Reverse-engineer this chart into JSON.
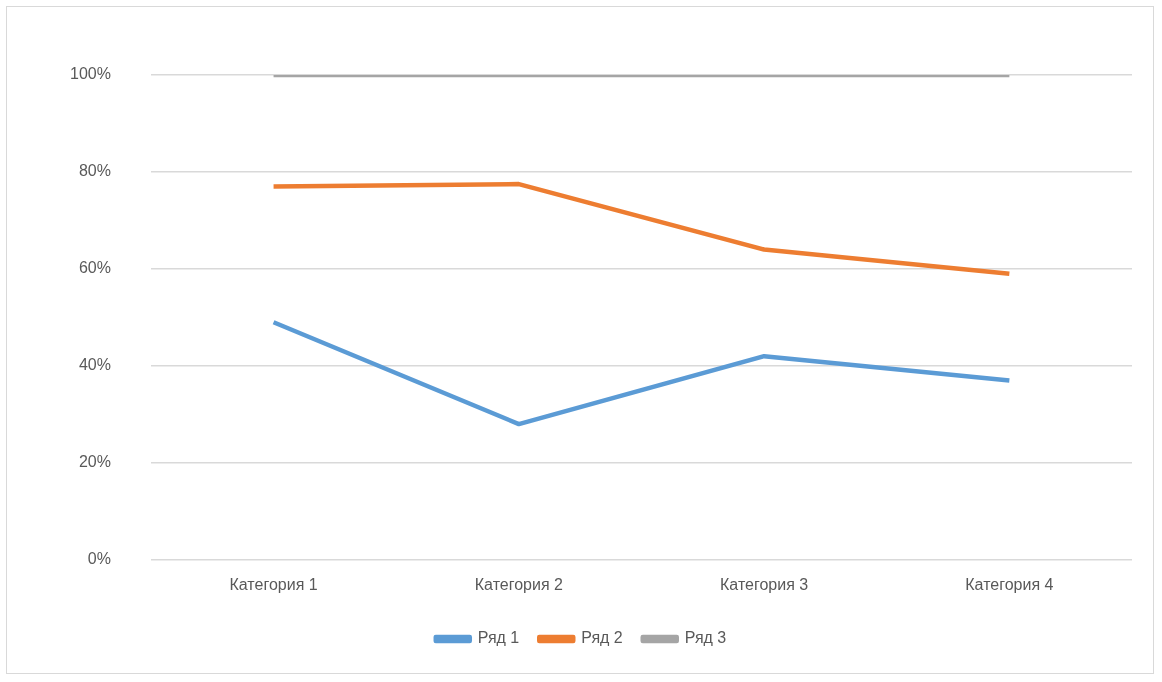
{
  "chart_data": {
    "type": "line",
    "categories": [
      "Категория 1",
      "Категория 2",
      "Категория 3",
      "Категория 4"
    ],
    "series": [
      {
        "name": "Ряд 1",
        "color": "#5b9bd5",
        "values": [
          49,
          28,
          42,
          37
        ]
      },
      {
        "name": "Ряд 2",
        "color": "#ed7d31",
        "values": [
          77,
          77.5,
          64,
          59
        ]
      },
      {
        "name": "Ряд 3",
        "color": "#a5a5a5",
        "values": [
          100,
          100,
          100,
          100
        ]
      }
    ],
    "ylim": [
      0,
      100
    ],
    "yticks": [
      {
        "value": 0,
        "label": "0%"
      },
      {
        "value": 20,
        "label": "20%"
      },
      {
        "value": 40,
        "label": "40%"
      },
      {
        "value": 60,
        "label": "60%"
      },
      {
        "value": 80,
        "label": "80%"
      },
      {
        "value": 100,
        "label": "100%"
      }
    ],
    "grid": "y",
    "legend": "bottom",
    "marker": "none",
    "line_style": "solid"
  }
}
